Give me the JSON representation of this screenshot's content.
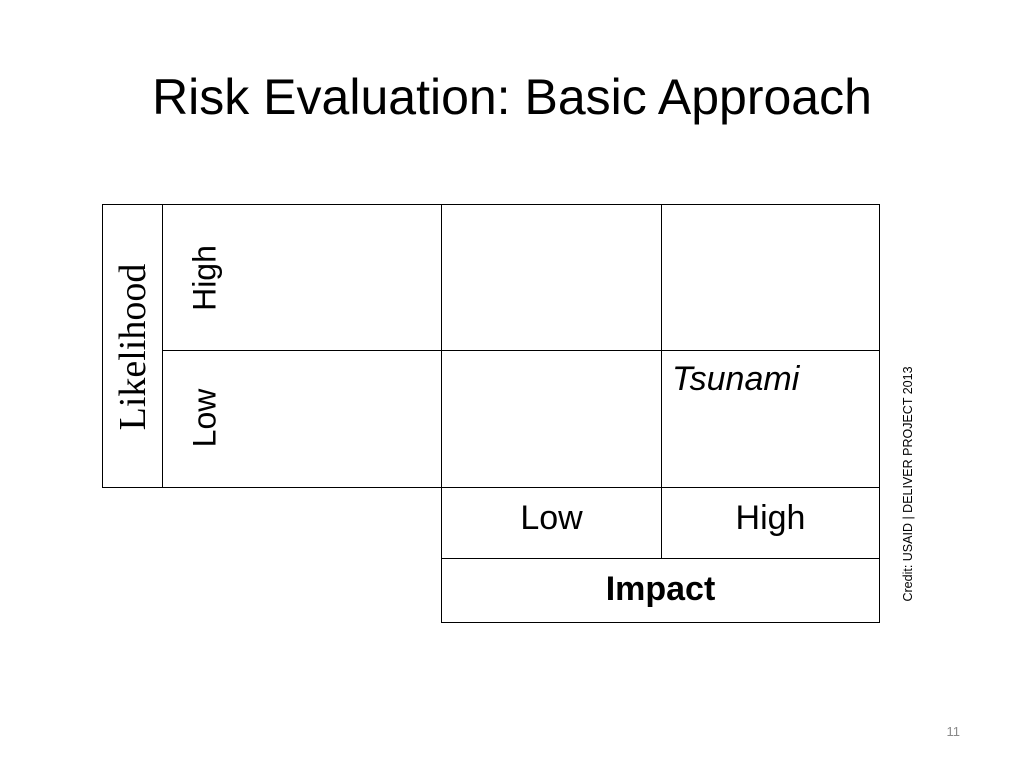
{
  "slide": {
    "title": "Risk Evaluation: Basic Approach",
    "page_number": "11"
  },
  "matrix": {
    "likelihood_label": "Likelihood",
    "likelihood_levels": [
      "High",
      "Low"
    ],
    "impact_label": "Impact",
    "impact_levels": [
      "Low",
      "High"
    ],
    "cells": {
      "high_likelihood_low_impact": "",
      "high_likelihood_high_impact": "",
      "low_likelihood_low_impact": "",
      "low_likelihood_high_impact": "Tsunami"
    }
  },
  "credit": "Credit: USAID | DELIVER PROJECT 2013"
}
